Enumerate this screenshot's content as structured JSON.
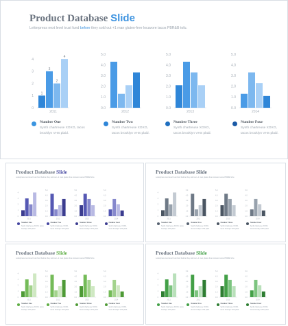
{
  "slides": [
    {
      "title_main": "Product Database",
      "title_accent": "Slide",
      "subtitle_pre": "Letterpress next level trust fund",
      "subtitle_link": "before",
      "subtitle_post": "they sold out +1 man gluten-free locavore tacos PBR&B tofu.",
      "accent": "#3f94e0",
      "palette": [
        "#1d6fbf",
        "#2f86d8",
        "#5aa6ea",
        "#9cc8f3"
      ],
      "legend_dots": [
        "#3b95e0",
        "#2f86d8",
        "#1f6fc0",
        "#1b5aa6"
      ]
    },
    {
      "title_main": "Product Database",
      "title_accent": "Slide",
      "subtitle": "Letterpress next level trust fund before they sold out +1 man gluten-free locavore tacos PBR&B tofu.",
      "accent": "#4d4fa5",
      "palette": [
        "#3b3c8f",
        "#5558b3",
        "#8688cc",
        "#b8b9e3"
      ],
      "legend_dots": [
        "#4446a0",
        "#4446a0",
        "#3b3c8f",
        "#3b3c8f"
      ]
    },
    {
      "title_main": "Product Database",
      "title_accent": "Slide",
      "subtitle": "Letterpress next level trust fund before they sold out +1 man gluten-free locavore tacos PBR&B tofu.",
      "accent": "#5f6a78",
      "palette": [
        "#4a5562",
        "#6e7986",
        "#98a2ad",
        "#c3cad2"
      ],
      "legend_dots": [
        "#566170",
        "#566170",
        "#4a5562",
        "#4a5562"
      ]
    },
    {
      "title_main": "Product Database",
      "title_accent": "Slide",
      "subtitle": "Letterpress next level trust fund before they sold out +1 man gluten-free locavore tacos PBR&B tofu.",
      "accent": "#5fae45",
      "palette": [
        "#4e9a36",
        "#74bb58",
        "#a3d38c",
        "#cfe8c2"
      ],
      "legend_dots": [
        "#5fae45",
        "#5fae45",
        "#4e9a36",
        "#4e9a36"
      ]
    },
    {
      "title_main": "Product Database",
      "title_accent": "Slide",
      "subtitle": "Letterpress next level trust fund before they sold out +1 man gluten-free locavore tacos PBR&B tofu.",
      "accent": "#43a047",
      "palette": [
        "#2e7d32",
        "#43a047",
        "#7cc47f",
        "#b9e0ba"
      ],
      "legend_dots": [
        "#43a047",
        "#43a047",
        "#2e7d32",
        "#2e7d32"
      ]
    }
  ],
  "chart_data": [
    {
      "type": "bar",
      "categories": [
        "1",
        "2",
        "3",
        "4"
      ],
      "values": [
        1,
        3,
        2,
        4
      ],
      "xlabel": "2011",
      "yticks": [
        "0",
        "1",
        "2",
        "3",
        "4"
      ],
      "data_labels": [
        "1",
        "3",
        "2",
        "4"
      ],
      "ylim": [
        0,
        4.4
      ]
    },
    {
      "type": "bar",
      "categories": [
        "1",
        "2",
        "3",
        "4"
      ],
      "values": [
        4.3,
        1.3,
        2.1,
        3.3
      ],
      "xlabel": "2012",
      "yticks": [
        "0.0",
        "1.0",
        "2.0",
        "3.0",
        "4.0",
        "5.0"
      ],
      "ylim": [
        0,
        5
      ]
    },
    {
      "type": "bar",
      "categories": [
        "1",
        "2",
        "3",
        "4"
      ],
      "values": [
        2.1,
        4.3,
        3.3,
        2.1
      ],
      "xlabel": "2013",
      "yticks": [
        "0.0",
        "1.0",
        "2.0",
        "3.0",
        "4.0",
        "5.0"
      ],
      "ylim": [
        0,
        5
      ]
    },
    {
      "type": "bar",
      "categories": [
        "1",
        "2",
        "3",
        "4"
      ],
      "values": [
        1.3,
        3.3,
        2.3,
        1.1
      ],
      "xlabel": "2014",
      "yticks": [
        "0.0",
        "1.0",
        "2.0",
        "3.0",
        "4.0",
        "5.0"
      ],
      "ylim": [
        0,
        5
      ]
    }
  ],
  "legend": [
    {
      "title": "Number One",
      "line1": "Synth chartreuse XOXO, tacos",
      "line2": "brooklyn VHS plaid."
    },
    {
      "title": "Number Two",
      "line1": "Synth chartreuse XOXO,",
      "line2": "tacos brooklyn VHS plaid."
    },
    {
      "title": "Number Three",
      "line1": "Synth chartreuse XOXO,",
      "line2": "tacos brooklyn VHS plaid."
    },
    {
      "title": "Number Four",
      "line1": "Synth chartreuse XOXO,",
      "line2": "tacos brooklyn VHS plaid."
    }
  ]
}
